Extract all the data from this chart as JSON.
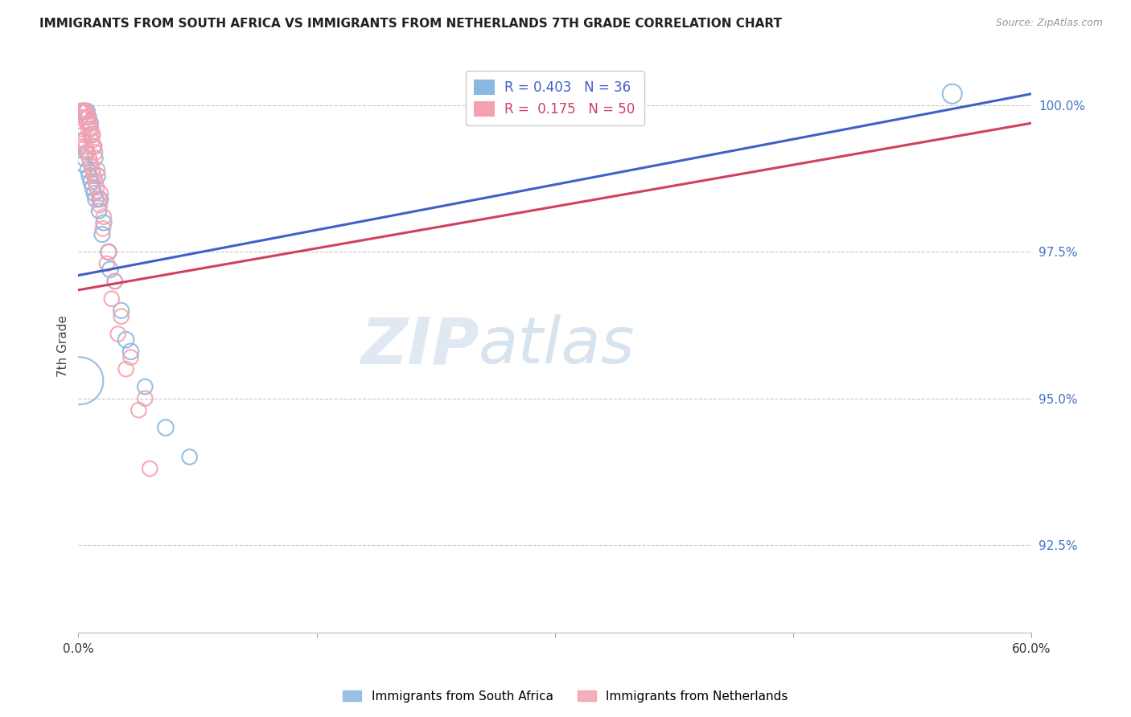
{
  "title": "IMMIGRANTS FROM SOUTH AFRICA VS IMMIGRANTS FROM NETHERLANDS 7TH GRADE CORRELATION CHART",
  "source": "Source: ZipAtlas.com",
  "ylabel": "7th Grade",
  "y_tick_labels": [
    "100.0%",
    "97.5%",
    "95.0%",
    "92.5%"
  ],
  "y_tick_values": [
    1.0,
    0.975,
    0.95,
    0.925
  ],
  "x_range": [
    0.0,
    60.0
  ],
  "y_range": [
    0.91,
    1.008
  ],
  "legend_label_blue": "Immigrants from South Africa",
  "legend_label_pink": "Immigrants from Netherlands",
  "R_blue": 0.403,
  "N_blue": 36,
  "R_pink": 0.175,
  "N_pink": 50,
  "color_blue": "#89b8e0",
  "color_pink": "#f4a0b0",
  "trendline_blue": "#4060c8",
  "trendline_pink": "#d04060",
  "watermark_zip": "ZIP",
  "watermark_atlas": "atlas",
  "background_color": "#ffffff",
  "blue_scatter_x": [
    0.08,
    0.15,
    0.25,
    0.35,
    0.45,
    0.55,
    0.65,
    0.75,
    0.85,
    0.95,
    1.05,
    1.2,
    1.4,
    1.6,
    1.9,
    2.3,
    2.7,
    3.3,
    4.2,
    5.5,
    7.0,
    55.0,
    0.3,
    0.5,
    0.7,
    0.9,
    1.1,
    1.3,
    0.2,
    0.4,
    0.6,
    0.8,
    1.0,
    1.5,
    2.0,
    3.0
  ],
  "blue_scatter_y": [
    0.953,
    0.999,
    0.999,
    0.999,
    0.999,
    0.999,
    0.998,
    0.997,
    0.995,
    0.993,
    0.991,
    0.988,
    0.984,
    0.98,
    0.975,
    0.97,
    0.965,
    0.958,
    0.952,
    0.945,
    0.94,
    1.002,
    0.99,
    0.992,
    0.988,
    0.986,
    0.984,
    0.982,
    0.994,
    0.991,
    0.989,
    0.987,
    0.985,
    0.978,
    0.972,
    0.96
  ],
  "blue_scatter_s": [
    1800,
    200,
    200,
    220,
    180,
    200,
    190,
    200,
    200,
    200,
    190,
    200,
    180,
    190,
    200,
    180,
    190,
    200,
    180,
    200,
    180,
    300,
    190,
    180,
    200,
    190,
    200,
    180,
    190,
    200,
    190,
    200,
    190,
    190,
    200,
    200
  ],
  "pink_scatter_x": [
    0.1,
    0.2,
    0.3,
    0.4,
    0.5,
    0.6,
    0.7,
    0.8,
    0.9,
    1.0,
    0.15,
    0.25,
    0.35,
    0.45,
    0.55,
    0.65,
    0.75,
    0.85,
    0.95,
    1.05,
    1.2,
    1.4,
    1.6,
    1.9,
    2.3,
    2.7,
    3.3,
    4.2,
    0.08,
    0.12,
    0.18,
    0.28,
    0.38,
    0.48,
    0.58,
    0.68,
    0.78,
    0.88,
    0.98,
    1.08,
    1.15,
    1.35,
    1.55,
    1.8,
    2.1,
    2.5,
    3.0,
    3.8,
    1.3,
    4.5
  ],
  "pink_scatter_y": [
    0.999,
    0.999,
    0.999,
    0.999,
    0.999,
    0.998,
    0.997,
    0.996,
    0.995,
    0.993,
    0.999,
    0.999,
    0.999,
    0.998,
    0.997,
    0.996,
    0.995,
    0.994,
    0.993,
    0.992,
    0.989,
    0.985,
    0.981,
    0.975,
    0.97,
    0.964,
    0.957,
    0.95,
    0.993,
    0.998,
    0.996,
    0.995,
    0.994,
    0.993,
    0.992,
    0.991,
    0.99,
    0.989,
    0.988,
    0.987,
    0.986,
    0.983,
    0.979,
    0.973,
    0.967,
    0.961,
    0.955,
    0.948,
    0.984,
    0.938
  ],
  "pink_scatter_s": [
    180,
    180,
    180,
    180,
    180,
    180,
    180,
    180,
    180,
    180,
    180,
    180,
    180,
    180,
    180,
    180,
    180,
    180,
    180,
    180,
    180,
    180,
    180,
    180,
    180,
    180,
    180,
    180,
    180,
    180,
    180,
    180,
    180,
    180,
    180,
    180,
    180,
    180,
    180,
    180,
    180,
    180,
    180,
    180,
    180,
    180,
    180,
    180,
    180,
    180
  ],
  "trendline_blue_x0": 0.0,
  "trendline_blue_y0": 0.971,
  "trendline_blue_x1": 60.0,
  "trendline_blue_y1": 1.002,
  "trendline_pink_x0": 0.0,
  "trendline_pink_y0": 0.9685,
  "trendline_pink_x1": 60.0,
  "trendline_pink_y1": 0.997
}
